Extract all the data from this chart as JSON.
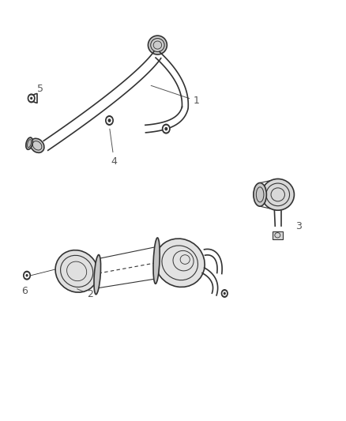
{
  "bg_color": "#ffffff",
  "line_color": "#333333",
  "label_color": "#555555",
  "label_fontsize": 9,
  "fig_width": 4.38,
  "fig_height": 5.33,
  "dpi": 100
}
